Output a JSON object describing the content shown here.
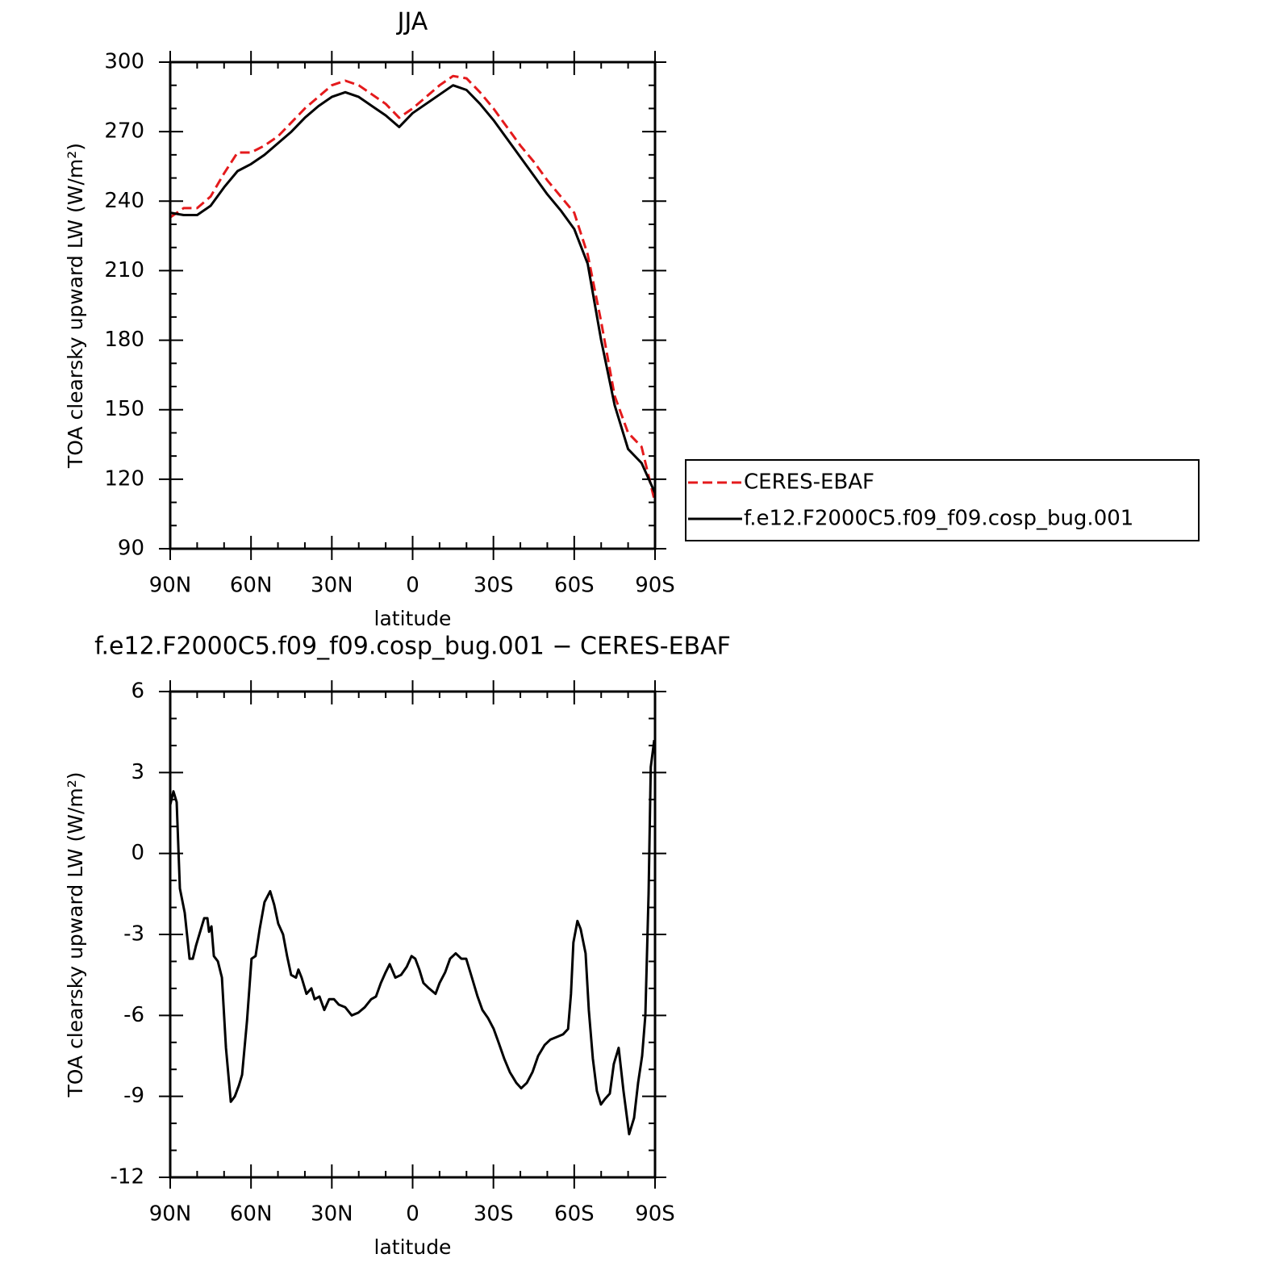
{
  "chart_data": [
    {
      "type": "line",
      "title": "JJA",
      "xlabel": "latitude",
      "ylabel": "TOA clearsky upward LW (W/m²)",
      "x": [
        90,
        85,
        80,
        75,
        70,
        65,
        60,
        55,
        50,
        45,
        40,
        35,
        30,
        25,
        20,
        15,
        10,
        5,
        0,
        -5,
        -10,
        -15,
        -20,
        -25,
        -30,
        -35,
        -40,
        -45,
        -50,
        -55,
        -60,
        -65,
        -70,
        -75,
        -80,
        -85,
        -90
      ],
      "series": [
        {
          "name": "CERES-EBAF",
          "color": "#e41a1c",
          "line_style": "dashed",
          "values": [
            233,
            237,
            237,
            242,
            252,
            261,
            261,
            264,
            268,
            274,
            280,
            285,
            290,
            292,
            290,
            286,
            282,
            276,
            280,
            285,
            290,
            294,
            293,
            287,
            280,
            272,
            264,
            257,
            249,
            242,
            235,
            217,
            188,
            156,
            140,
            134,
            110
          ]
        },
        {
          "name": "f.e12.F2000C5.f09_f09.cosp_bug.001",
          "color": "#000000",
          "line_style": "solid",
          "values": [
            235,
            234,
            234,
            238,
            246,
            253,
            256,
            260,
            265,
            270,
            276,
            281,
            285,
            287,
            285,
            281,
            277,
            272,
            278,
            282,
            286,
            290,
            288,
            282,
            275,
            267,
            259,
            251,
            243,
            236,
            228,
            213,
            180,
            152,
            133,
            127,
            114
          ]
        }
      ],
      "xlim": [
        90,
        -90
      ],
      "xticks": [
        {
          "value": 90,
          "label": "90N"
        },
        {
          "value": 60,
          "label": "60N"
        },
        {
          "value": 30,
          "label": "30N"
        },
        0,
        {
          "value": -30,
          "label": "30S"
        },
        {
          "value": -60,
          "label": "60S"
        },
        {
          "value": -90,
          "label": "90S"
        }
      ],
      "ylim": [
        90,
        300
      ],
      "yticks": [
        90,
        120,
        150,
        180,
        210,
        240,
        270,
        300
      ],
      "legend": "outside-right"
    },
    {
      "type": "line",
      "title": "f.e12.F2000C5.f09_f09.cosp_bug.001 − CERES-EBAF",
      "xlabel": "latitude",
      "ylabel": "TOA clearsky upward LW (W/m²)",
      "x": [
        90,
        88.8,
        87.6,
        86.4,
        84.6,
        82.8,
        81.6,
        80.4,
        78.6,
        77.4,
        76.2,
        75.6,
        74.7,
        73.8,
        72.3,
        70.8,
        69.3,
        67.5,
        66,
        64.5,
        63.3,
        61.5,
        59.8,
        58.3,
        56.8,
        55,
        52.9,
        51.4,
        49.9,
        48.1,
        46.6,
        45.1,
        43.3,
        42.4,
        41.2,
        39.4,
        37.6,
        36.4,
        34.6,
        32.8,
        31,
        29.2,
        27.4,
        25,
        22.6,
        20.2,
        17.8,
        15.4,
        13.6,
        11.8,
        10,
        8.5,
        6.4,
        4.3,
        2.2,
        0.4,
        -1,
        -2.5,
        -4,
        -6.1,
        -8.5,
        -10,
        -12.1,
        -13.9,
        -16,
        -18.1,
        -19.9,
        -22,
        -24.1,
        -25.9,
        -28,
        -30.1,
        -31.9,
        -34,
        -36.1,
        -38.5,
        -40.3,
        -42.4,
        -44.5,
        -46.6,
        -49,
        -51.1,
        -53.5,
        -55.9,
        -57.7,
        -58.8,
        -59.7,
        -61.2,
        -62.4,
        -64.2,
        -65.4,
        -66.9,
        -68.4,
        -69.9,
        -71.4,
        -73.2,
        -74.7,
        -76.5,
        -78.3,
        -80.4,
        -82.2,
        -83.7,
        -85.2,
        -86.4,
        -87.6,
        -88.4,
        -89.7
      ],
      "series": [
        {
          "color": "#000000",
          "line_style": "solid",
          "values": [
            1.8,
            2.3,
            1.9,
            -1.3,
            -2.2,
            -3.9,
            -3.9,
            -3.4,
            -2.8,
            -2.4,
            -2.4,
            -2.9,
            -2.7,
            -3.8,
            -4.0,
            -4.6,
            -7.2,
            -9.2,
            -9.0,
            -8.6,
            -8.2,
            -6.2,
            -3.9,
            -3.8,
            -2.8,
            -1.8,
            -1.4,
            -1.9,
            -2.6,
            -3.0,
            -3.8,
            -4.5,
            -4.6,
            -4.3,
            -4.6,
            -5.2,
            -5.0,
            -5.4,
            -5.3,
            -5.8,
            -5.4,
            -5.4,
            -5.6,
            -5.7,
            -6.0,
            -5.9,
            -5.7,
            -5.4,
            -5.3,
            -4.8,
            -4.4,
            -4.1,
            -4.6,
            -4.5,
            -4.2,
            -3.8,
            -3.9,
            -4.3,
            -4.8,
            -5.0,
            -5.2,
            -4.8,
            -4.4,
            -3.9,
            -3.7,
            -3.9,
            -3.9,
            -4.6,
            -5.3,
            -5.8,
            -6.1,
            -6.5,
            -7.0,
            -7.6,
            -8.1,
            -8.5,
            -8.7,
            -8.5,
            -8.1,
            -7.5,
            -7.1,
            -6.9,
            -6.8,
            -6.7,
            -6.5,
            -5.2,
            -3.3,
            -2.5,
            -2.8,
            -3.7,
            -5.8,
            -7.6,
            -8.8,
            -9.3,
            -9.1,
            -8.9,
            -7.8,
            -7.2,
            -8.8,
            -10.4,
            -9.8,
            -8.5,
            -7.5,
            -6.0,
            -1.5,
            3.2,
            4.2
          ]
        }
      ],
      "xlim": [
        90,
        -90
      ],
      "xticks": [
        {
          "value": 90,
          "label": "90N"
        },
        {
          "value": 60,
          "label": "60N"
        },
        {
          "value": 30,
          "label": "30N"
        },
        0,
        {
          "value": -30,
          "label": "30S"
        },
        {
          "value": -60,
          "label": "60S"
        },
        {
          "value": -90,
          "label": "90S"
        }
      ],
      "ylim": [
        -12,
        6
      ],
      "yticks": [
        -12,
        -9,
        -6,
        -3,
        0,
        3,
        6
      ]
    }
  ]
}
